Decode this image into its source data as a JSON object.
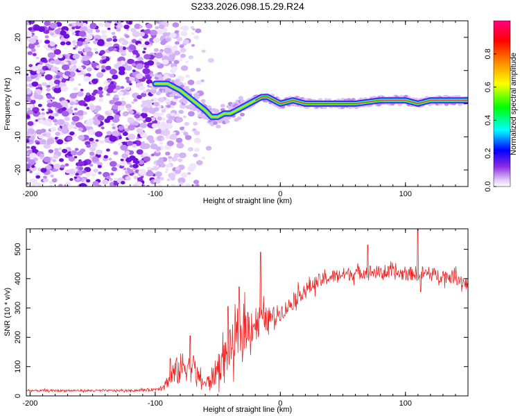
{
  "title": "S233.2026.098.15.29.R24",
  "chart_data": [
    {
      "type": "heatmap",
      "name": "spectrogram",
      "xlabel": "Height of straight line (km)",
      "ylabel": "Frequency (Hz)",
      "xlim": [
        -203,
        150
      ],
      "ylim": [
        -25,
        25
      ],
      "xticks": [
        -200,
        -100,
        0,
        100
      ],
      "yticks": [
        -20,
        -10,
        0,
        10,
        20
      ],
      "colorbar": {
        "label": "Normalized spectral amplitude",
        "range": [
          0.0,
          1.0
        ],
        "ticks": [
          0.0,
          0.2,
          0.4,
          0.6,
          0.8
        ],
        "tick_labels": [
          "0.0",
          "0.2",
          "0.4",
          "0.6",
          "0.8"
        ],
        "colors": [
          "#ffffff",
          "#e0c8f8",
          "#8a2be2",
          "#0000ff",
          "#00ffff",
          "#00ff00",
          "#ffff00",
          "#ff8000",
          "#ff0000",
          "#ff0080"
        ]
      },
      "ridge": {
        "x": [
          -100,
          -90,
          -80,
          -70,
          -60,
          -55,
          -50,
          -45,
          -40,
          -35,
          -30,
          -25,
          -20,
          -15,
          -10,
          -5,
          0,
          10,
          20,
          40,
          60,
          80,
          90,
          100,
          110,
          120,
          130,
          140,
          150
        ],
        "freq": [
          6,
          6,
          4,
          1,
          -2,
          -4,
          -4,
          -3,
          -3,
          -2,
          -1,
          0,
          1,
          2,
          2,
          1,
          0,
          1,
          0,
          0,
          0,
          1,
          1,
          1,
          0,
          1,
          1,
          1,
          1
        ]
      }
    },
    {
      "type": "line",
      "name": "snr",
      "xlabel": "Height of straight line (km)",
      "ylabel": "SNR (10 * v/v)",
      "xlim": [
        -203,
        150
      ],
      "ylim": [
        0,
        570
      ],
      "xticks": [
        -200,
        -100,
        0,
        100
      ],
      "yticks": [
        0,
        100,
        200,
        300,
        400,
        500
      ],
      "color": "#ee2222",
      "x": [
        -203,
        -190,
        -180,
        -170,
        -160,
        -150,
        -140,
        -130,
        -120,
        -110,
        -100,
        -95,
        -90,
        -85,
        -80,
        -75,
        -70,
        -65,
        -60,
        -55,
        -50,
        -45,
        -40,
        -35,
        -30,
        -25,
        -20,
        -15,
        -10,
        -5,
        0,
        5,
        10,
        15,
        20,
        25,
        30,
        40,
        50,
        60,
        70,
        80,
        90,
        100,
        110,
        120,
        130,
        140,
        150
      ],
      "values": [
        18,
        18,
        18,
        18,
        18,
        18,
        18,
        18,
        18,
        20,
        22,
        30,
        50,
        80,
        90,
        110,
        100,
        60,
        40,
        60,
        90,
        130,
        160,
        190,
        220,
        240,
        250,
        255,
        262,
        272,
        285,
        300,
        320,
        345,
        360,
        375,
        390,
        405,
        415,
        418,
        425,
        420,
        420,
        415,
        420,
        415,
        410,
        405,
        380
      ],
      "noise": [
        4,
        4,
        4,
        4,
        4,
        4,
        4,
        4,
        4,
        5,
        6,
        10,
        25,
        50,
        60,
        70,
        60,
        30,
        20,
        40,
        55,
        70,
        80,
        85,
        85,
        80,
        70,
        60,
        45,
        38,
        32,
        30,
        30,
        30,
        28,
        28,
        28,
        26,
        26,
        26,
        26,
        26,
        26,
        26,
        28,
        26,
        26,
        26,
        28
      ],
      "spikes": [
        {
          "x": -88,
          "y": 128
        },
        {
          "x": -72,
          "y": 205
        },
        {
          "x": -42,
          "y": 305
        },
        {
          "x": -33,
          "y": 372
        },
        {
          "x": -16,
          "y": 490
        },
        {
          "x": 70,
          "y": 515
        },
        {
          "x": 110,
          "y": 570
        },
        {
          "x": 112,
          "y": 355
        }
      ]
    }
  ]
}
